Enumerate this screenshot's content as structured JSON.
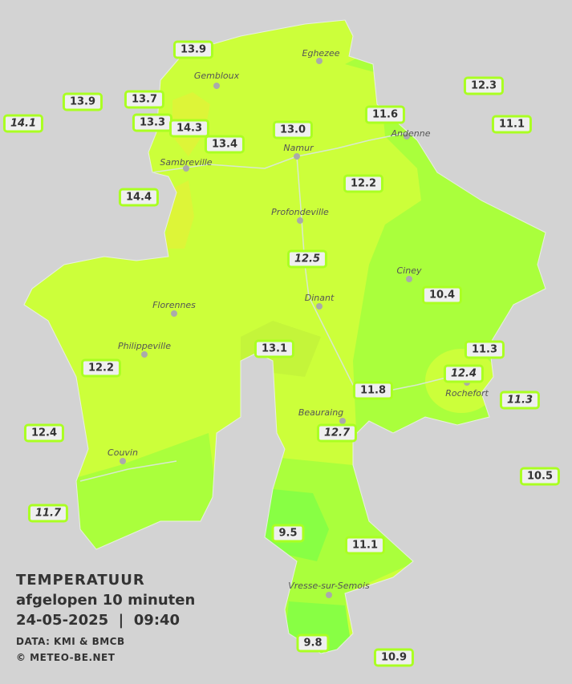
{
  "legend": {
    "title": "TEMPERATUUR",
    "subtitle": "afgelopen 10 minuten",
    "datetime": "24-05-2025  |  09:40",
    "source": "DATA: KMI & BMCB",
    "copyright": "© METEO-BE.NET"
  },
  "colors": {
    "background": "#d3d3d3",
    "zone_warm": "#ccff3a",
    "zone_mid": "#aaff3c",
    "zone_cool": "#88ff44",
    "zone_hot": "#ddf538",
    "label_border": "#aaff22"
  },
  "cities": [
    "Eghezee",
    "Gembloux",
    "Andenne",
    "Namur",
    "Sambreville",
    "Profondeville",
    "Ciney",
    "Dinant",
    "Florennes",
    "Philippeville",
    "Rochefort",
    "Beauraing",
    "Couvin",
    "Vresse-sur-Semois"
  ],
  "stations": [
    "13.9",
    "13.9",
    "14.1",
    "13.7",
    "13.3",
    "14.3",
    "13.4",
    "13.0",
    "11.6",
    "12.3",
    "11.1",
    "14.4",
    "12.2",
    "12.5",
    "10.4",
    "13.1",
    "12.2",
    "11.3",
    "12.4",
    "11.8",
    "11.3",
    "12.7",
    "12.4",
    "10.5",
    "11.7",
    "9.5",
    "11.1",
    "9.8",
    "10.9"
  ]
}
